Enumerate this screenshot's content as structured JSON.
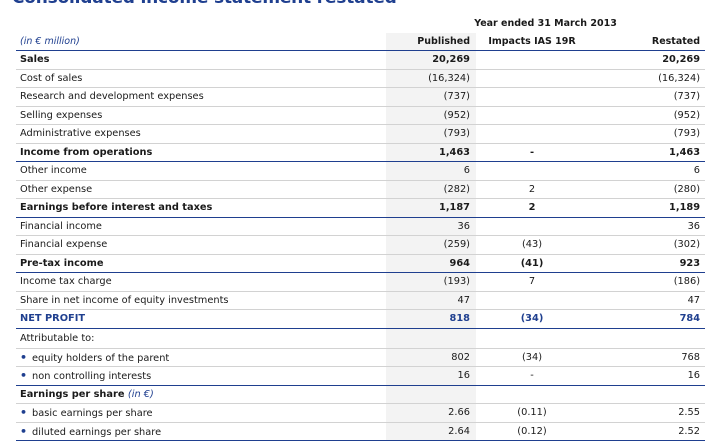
{
  "title": "Consolidated income statement restated",
  "period_header": "Year ended 31 March 2013",
  "columns": {
    "unit": "(in € million)",
    "published": "Published",
    "impacts": "Impacts IAS 19R",
    "restated": "Restated"
  },
  "rows": [
    {
      "label": "Sales",
      "published": "20,269",
      "impacts": "",
      "restated": "20,269"
    },
    {
      "label": "Cost of sales",
      "published": "(16,324)",
      "impacts": "",
      "restated": "(16,324)"
    },
    {
      "label": "Research and development expenses",
      "published": "(737)",
      "impacts": "",
      "restated": "(737)"
    },
    {
      "label": "Selling expenses",
      "published": "(952)",
      "impacts": "",
      "restated": "(952)"
    },
    {
      "label": "Administrative expenses",
      "published": "(793)",
      "impacts": "",
      "restated": "(793)"
    },
    {
      "label": "Income from operations",
      "published": "1,463",
      "impacts": "-",
      "restated": "1,463"
    },
    {
      "label": "Other income",
      "published": "6",
      "impacts": "",
      "restated": "6"
    },
    {
      "label": "Other expense",
      "published": "(282)",
      "impacts": "2",
      "restated": "(280)"
    },
    {
      "label": "Earnings before interest and taxes",
      "published": "1,187",
      "impacts": "2",
      "restated": "1,189"
    },
    {
      "label": "Financial income",
      "published": "36",
      "impacts": "",
      "restated": "36"
    },
    {
      "label": "Financial expense",
      "published": "(259)",
      "impacts": "(43)",
      "restated": "(302)"
    },
    {
      "label": "Pre-tax income",
      "published": "964",
      "impacts": "(41)",
      "restated": "923"
    },
    {
      "label": "Income tax charge",
      "published": "(193)",
      "impacts": "7",
      "restated": "(186)"
    },
    {
      "label": "Share in net income of equity investments",
      "published": "47",
      "impacts": "",
      "restated": "47"
    },
    {
      "label": "NET PROFIT",
      "published": "818",
      "impacts": "(34)",
      "restated": "784"
    },
    {
      "label": "Attributable to:",
      "published": "",
      "impacts": "",
      "restated": ""
    },
    {
      "label": "equity holders of the parent",
      "published": "802",
      "impacts": "(34)",
      "restated": "768"
    },
    {
      "label": "non controlling interests",
      "published": "16",
      "impacts": "-",
      "restated": "16"
    },
    {
      "label": "Earnings per share",
      "unit": "(in €)",
      "published": "",
      "impacts": "",
      "restated": ""
    },
    {
      "label": "basic earnings per share",
      "published": "2.66",
      "impacts": "(0.11)",
      "restated": "2.55"
    },
    {
      "label": "diluted earnings per share",
      "published": "2.64",
      "impacts": "(0.12)",
      "restated": "2.52"
    }
  ]
}
